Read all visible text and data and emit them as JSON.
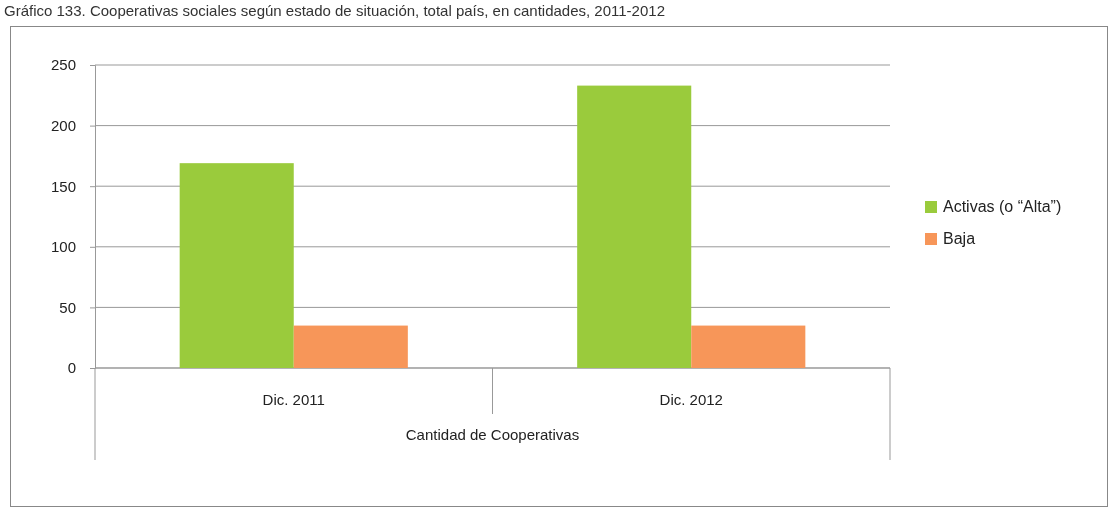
{
  "chart_data": {
    "type": "bar",
    "title": "Gráfico 133. Cooperativas sociales según estado de situación, total país, en cantidades, 2011-2012",
    "xlabel": "Cantidad de Cooperativas",
    "categories": [
      "Dic. 2011",
      "Dic. 2012"
    ],
    "series": [
      {
        "name": "Activas (o “Alta”)",
        "color": "#9acb3c",
        "values": [
          169,
          233
        ]
      },
      {
        "name": "Baja",
        "color": "#f79659",
        "values": [
          35,
          35
        ]
      }
    ],
    "ylim": [
      0,
      250
    ],
    "yticks": [
      0,
      50,
      100,
      150,
      200,
      250
    ],
    "grid": "y",
    "legend": "right"
  }
}
